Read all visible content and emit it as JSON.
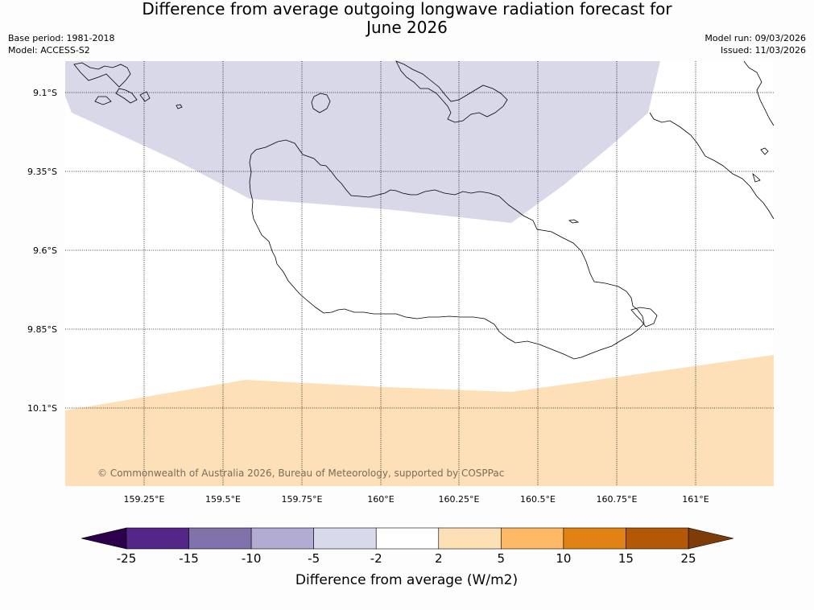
{
  "title": {
    "line1": "Difference from average outgoing longwave radiation forecast for",
    "line2": "June 2026"
  },
  "meta_left": {
    "base_period": "Base period: 1981-2018",
    "model": "Model: ACCESS-S2"
  },
  "meta_right": {
    "model_run": "Model run: 09/03/2026",
    "issued": "Issued: 11/03/2026"
  },
  "map": {
    "latitude_labels": [
      "9.1°S",
      "9.35°S",
      "9.6°S",
      "9.85°S",
      "10.1°S"
    ],
    "longitude_labels": [
      "159.25°E",
      "159.5°E",
      "159.75°E",
      "160°E",
      "160.25°E",
      "160.5°E",
      "160.75°E",
      "161°E"
    ],
    "copyright": "© Commonwealth of Australia 2026, Bureau of Meteorology, supported by COSPPac",
    "regions": [
      {
        "name": "northern-anomaly-region",
        "range": "-5 to -2",
        "color": "#d8d8e9"
      },
      {
        "name": "neutral-region",
        "range": "-2 to 2",
        "color": "#ffffff"
      },
      {
        "name": "southern-anomaly-region",
        "range": "2 to 5",
        "color": "#fde0b7"
      }
    ]
  },
  "colorbar": {
    "title": "Difference from average (W/m2)",
    "ticks": [
      "-25",
      "-15",
      "-10",
      "-5",
      "-2",
      "2",
      "5",
      "10",
      "15",
      "25"
    ],
    "under_color": "#2d004b",
    "over_color": "#7f3b08",
    "bins": [
      {
        "range": "-25 to -15",
        "color": "#542688"
      },
      {
        "range": "-15 to -10",
        "color": "#8073ac"
      },
      {
        "range": "-10 to -5",
        "color": "#b2abd2"
      },
      {
        "range": "-5 to -2",
        "color": "#d8daeb"
      },
      {
        "range": "-2 to 2",
        "color": "#ffffff"
      },
      {
        "range": "2 to 5",
        "color": "#fee0b6"
      },
      {
        "range": "5 to 10",
        "color": "#fdb863"
      },
      {
        "range": "10 to 15",
        "color": "#e08214"
      },
      {
        "range": "15 to 25",
        "color": "#b35806"
      }
    ]
  }
}
